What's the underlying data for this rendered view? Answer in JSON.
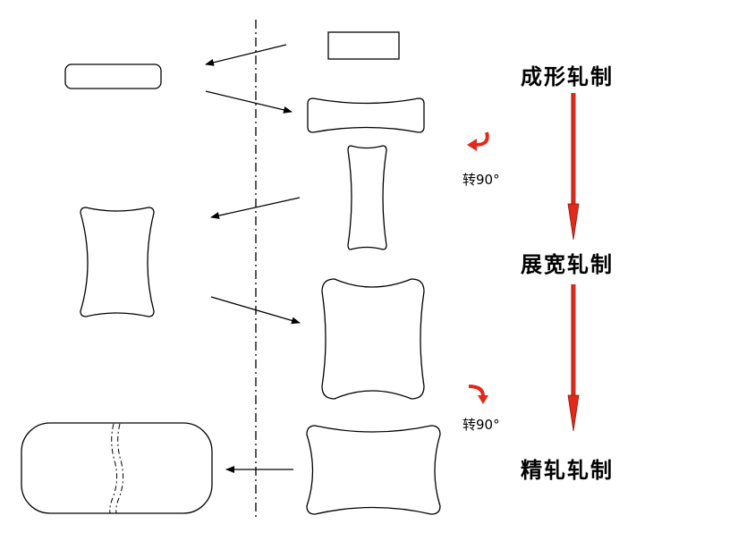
{
  "stages": [
    {
      "label": "成形轧制"
    },
    {
      "label": "展宽轧制"
    },
    {
      "label": "精轧轧制"
    }
  ],
  "rotations": [
    {
      "label": "转90°"
    },
    {
      "label": "转90°"
    }
  ],
  "colors": {
    "arrow_red": "#e02a1b",
    "arrow_red_dark": "#8a1a10",
    "line": "#000000"
  }
}
